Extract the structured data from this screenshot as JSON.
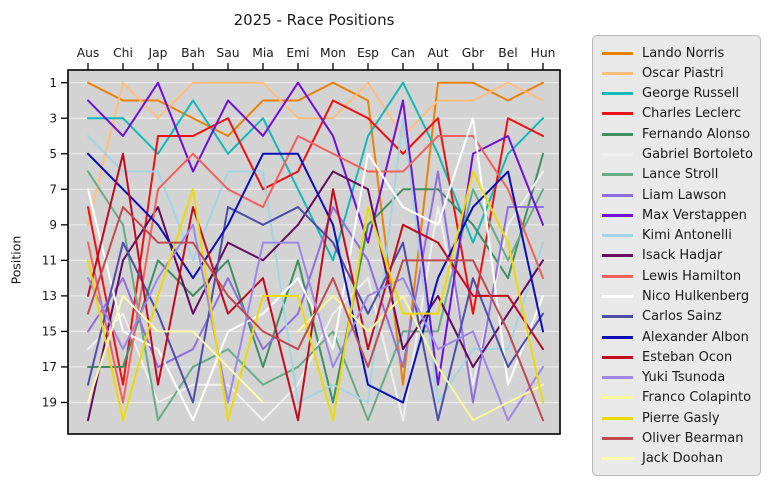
{
  "title": "2025 - Race Positions",
  "ylabel": "Position",
  "chart_data": {
    "type": "line",
    "title": "2025 - Race Positions",
    "xlabel": "",
    "ylabel": "Position",
    "categories": [
      "Aus",
      "Chi",
      "Jap",
      "Bah",
      "Sau",
      "Mia",
      "Emi",
      "Mon",
      "Esp",
      "Can",
      "Aut",
      "Gbr",
      "Bel",
      "Hun"
    ],
    "y_ticks": [
      1,
      3,
      5,
      7,
      9,
      11,
      13,
      15,
      17,
      19
    ],
    "ylim": [
      0.4,
      20.8
    ],
    "y_axis_inverted": true,
    "x_labels_position": "top",
    "grid": "horizontal",
    "legend_position": "right-outside",
    "plot_bg_color": "#d3d3d3",
    "grid_color": "rgba(255,255,255,0.55)",
    "spine_color": "#000000",
    "series": [
      {
        "name": "Lando Norris",
        "color": "#e8820a",
        "values": [
          1,
          2,
          2,
          3,
          4,
          2,
          2,
          1,
          2,
          18,
          1,
          1,
          2,
          1
        ]
      },
      {
        "name": "Oscar Piastri",
        "color": "#ffbe7e",
        "values": [
          9,
          1,
          3,
          1,
          1,
          1,
          3,
          3,
          1,
          4,
          2,
          2,
          1,
          2
        ]
      },
      {
        "name": "George Russell",
        "color": "#14b8b8",
        "values": [
          3,
          3,
          5,
          2,
          5,
          3,
          7,
          11,
          4,
          1,
          5,
          10,
          5,
          3
        ]
      },
      {
        "name": "Charles Leclerc",
        "color": "#ee1111",
        "values": [
          8,
          18,
          4,
          4,
          3,
          7,
          6,
          2,
          3,
          5,
          3,
          14,
          3,
          4
        ]
      },
      {
        "name": "Fernando Alonso",
        "color": "#3f8f63",
        "values": [
          17,
          17,
          11,
          13,
          11,
          17,
          11,
          19,
          9,
          7,
          7,
          9,
          12,
          5
        ]
      },
      {
        "name": "Gabriel Bortoleto",
        "color": "#efefef",
        "values": [
          16,
          14,
          19,
          18,
          18,
          20,
          18,
          14,
          12,
          20,
          8,
          18,
          9,
          6
        ]
      },
      {
        "name": "Lance Stroll",
        "color": "#67ac87",
        "values": [
          6,
          9,
          20,
          17,
          16,
          18,
          17,
          15,
          20,
          15,
          15,
          7,
          11,
          7
        ]
      },
      {
        "name": "Liam Lawson",
        "color": "#8f6fe0",
        "values": [
          15,
          12,
          17,
          16,
          12,
          16,
          14,
          8,
          11,
          17,
          6,
          19,
          8,
          8
        ]
      },
      {
        "name": "Max Verstappen",
        "color": "#6f10d8",
        "values": [
          2,
          4,
          1,
          6,
          2,
          4,
          1,
          4,
          10,
          2,
          18,
          5,
          4,
          9
        ]
      },
      {
        "name": "Kimi Antonelli",
        "color": "#a3d4e4",
        "values": [
          4,
          6,
          6,
          11,
          6,
          6,
          19,
          18,
          19,
          3,
          19,
          16,
          16,
          10
        ]
      },
      {
        "name": "Isack Hadjar",
        "color": "#660b5e",
        "values": [
          20,
          11,
          8,
          14,
          10,
          11,
          9,
          6,
          7,
          16,
          13,
          17,
          14,
          11
        ]
      },
      {
        "name": "Lewis Hamilton",
        "color": "#f2615c",
        "values": [
          10,
          19,
          7,
          5,
          7,
          8,
          4,
          5,
          6,
          6,
          4,
          4,
          7,
          12
        ]
      },
      {
        "name": "Nico Hulkenberg",
        "color": "#ffffff",
        "values": [
          7,
          15,
          16,
          20,
          15,
          14,
          12,
          16,
          5,
          8,
          9,
          3,
          18,
          13
        ]
      },
      {
        "name": "Carlos Sainz",
        "color": "#4e4ea8",
        "values": [
          18,
          10,
          14,
          19,
          8,
          9,
          8,
          10,
          14,
          10,
          20,
          12,
          17,
          14
        ]
      },
      {
        "name": "Alexander Albon",
        "color": "#0d0db8",
        "values": [
          5,
          7,
          9,
          12,
          9,
          5,
          5,
          9,
          18,
          19,
          12,
          8,
          6,
          15
        ]
      },
      {
        "name": "Esteban Ocon",
        "color": "#c30b1f",
        "values": [
          13,
          5,
          18,
          8,
          14,
          12,
          20,
          7,
          16,
          9,
          10,
          13,
          13,
          16
        ]
      },
      {
        "name": "Yuki Tsunoda",
        "color": "#9f87e8",
        "values": [
          12,
          16,
          12,
          9,
          19,
          10,
          10,
          17,
          13,
          12,
          16,
          15,
          20,
          17
        ]
      },
      {
        "name": "Franco Colapinto",
        "color": "#f7f79b",
        "values": [
          null,
          null,
          null,
          null,
          null,
          null,
          15,
          13,
          15,
          13,
          17,
          20,
          19,
          18
        ]
      },
      {
        "name": "Pierre Gasly",
        "color": "#edda02",
        "values": [
          11,
          20,
          13,
          7,
          20,
          13,
          13,
          20,
          8,
          14,
          14,
          6,
          10,
          19
        ]
      },
      {
        "name": "Oliver Bearman",
        "color": "#be4b50",
        "values": [
          14,
          8,
          10,
          10,
          13,
          15,
          16,
          12,
          17,
          11,
          11,
          11,
          15,
          20
        ]
      },
      {
        "name": "Jack Doohan",
        "color": "#fafaae",
        "values": [
          19,
          13,
          15,
          15,
          17,
          19,
          null,
          null,
          null,
          null,
          null,
          null,
          null,
          null
        ]
      }
    ]
  }
}
